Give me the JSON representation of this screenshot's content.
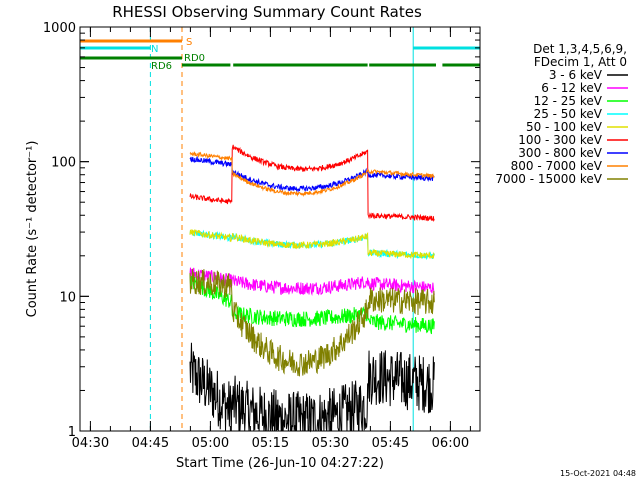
{
  "chart_data": {
    "type": "line",
    "title": "RHESSI Observing Summary Count Rates",
    "xlabel": "Start Time (26-Jun-10 04:27:22)",
    "ylabel": "Count Rate (s⁻¹ detector⁻¹)",
    "yscale": "log",
    "ylim": [
      1,
      1000
    ],
    "xlim_minutes": [
      0,
      100
    ],
    "x_ticks": [
      {
        "label": "04:30",
        "t": 2.6
      },
      {
        "label": "04:45",
        "t": 17.6
      },
      {
        "label": "05:00",
        "t": 32.6
      },
      {
        "label": "05:15",
        "t": 47.6
      },
      {
        "label": "05:30",
        "t": 62.6
      },
      {
        "label": "05:45",
        "t": 77.6
      },
      {
        "label": "06:00",
        "t": 92.6
      }
    ],
    "y_ticks": [
      {
        "label": "1",
        "v": 1
      },
      {
        "label": "10",
        "v": 10
      },
      {
        "label": "100",
        "v": 100
      },
      {
        "label": "1000",
        "v": 1000
      }
    ],
    "legend_header": [
      "Det 1,3,4,5,6,9,",
      "FDecim 1, Att 0"
    ],
    "legend_placement": "right",
    "timestamp": "15-Oct-2021 04:48",
    "flags": [
      {
        "label": "S",
        "color": "#ff8000",
        "segments": [
          [
            0,
            25.5
          ]
        ]
      },
      {
        "label": "N",
        "color": "#00e0e0",
        "segments": [
          [
            0,
            17.6
          ],
          [
            83.3,
            100
          ]
        ]
      },
      {
        "label": "RD6",
        "color": "#008000",
        "segments": [
          [
            0,
            25.5
          ]
        ]
      },
      {
        "label": "RD0",
        "color": "#008000",
        "segments": [
          [
            25.5,
            37.6
          ],
          [
            38.3,
            71.9
          ],
          [
            72.3,
            89
          ],
          [
            90.6,
            100
          ]
        ]
      }
    ],
    "vlines": [
      {
        "color": "#00e0e0",
        "style": "solid",
        "t": 0
      },
      {
        "color": "#00e0e0",
        "style": "dashed",
        "t": 17.6
      },
      {
        "color": "#ff8000",
        "style": "dashed",
        "t": 25.5
      },
      {
        "color": "#00e0e0",
        "style": "solid",
        "t": 83.3
      },
      {
        "color": "#00e0e0",
        "style": "dashed",
        "t": 100
      }
    ],
    "data_window": {
      "start": 27.5,
      "end": 88.6
    },
    "shape_segments_t": [
      27.5,
      38,
      72,
      88.6
    ],
    "series": [
      {
        "name": "3 - 6 keV",
        "color": "#000000",
        "start": [
          2.8,
          1.4
        ],
        "mid": [
          1.6,
          1.2,
          1.6
        ],
        "end": [
          2.6,
          2.2
        ],
        "noise": 0.22
      },
      {
        "name": "6 - 12 keV",
        "color": "#ff00ff",
        "start": [
          15,
          13
        ],
        "mid": [
          13,
          11.5,
          13
        ],
        "end": [
          12.5,
          11.5
        ],
        "noise": 0.05
      },
      {
        "name": "12 - 25 keV",
        "color": "#00ff00",
        "start": [
          13,
          9
        ],
        "mid": [
          7.5,
          6.8,
          7.5
        ],
        "end": [
          6.5,
          6
        ],
        "noise": 0.06
      },
      {
        "name": "25 - 50 keV",
        "color": "#00ffff",
        "start": [
          30,
          27
        ],
        "mid": [
          28,
          24,
          28
        ],
        "end": [
          21,
          20
        ],
        "noise": 0.025
      },
      {
        "name": "50 - 100 keV",
        "color": "#e0e000",
        "start": [
          30,
          27
        ],
        "mid": [
          28,
          24,
          28
        ],
        "end": [
          21,
          20
        ],
        "noise": 0.025
      },
      {
        "name": "100 - 300 keV",
        "color": "#ff0000",
        "start": [
          55,
          50
        ],
        "mid": [
          130,
          88,
          120
        ],
        "end": [
          40,
          38
        ],
        "noise": 0.02
      },
      {
        "name": "300 - 800 keV",
        "color": "#0000ff",
        "start": [
          105,
          95
        ],
        "mid": [
          85,
          63,
          85
        ],
        "end": [
          80,
          75
        ],
        "noise": 0.02
      },
      {
        "name": "800 - 7000 keV",
        "color": "#ff8000",
        "start": [
          115,
          105
        ],
        "mid": [
          82,
          58,
          84
        ],
        "end": [
          85,
          78
        ],
        "noise": 0.015
      },
      {
        "name": "7000 - 15000 keV",
        "color": "#808000",
        "start": [
          13,
          12
        ],
        "mid": [
          8,
          3.2,
          8
        ],
        "end": [
          9.5,
          9
        ],
        "noise": 0.1
      }
    ]
  }
}
